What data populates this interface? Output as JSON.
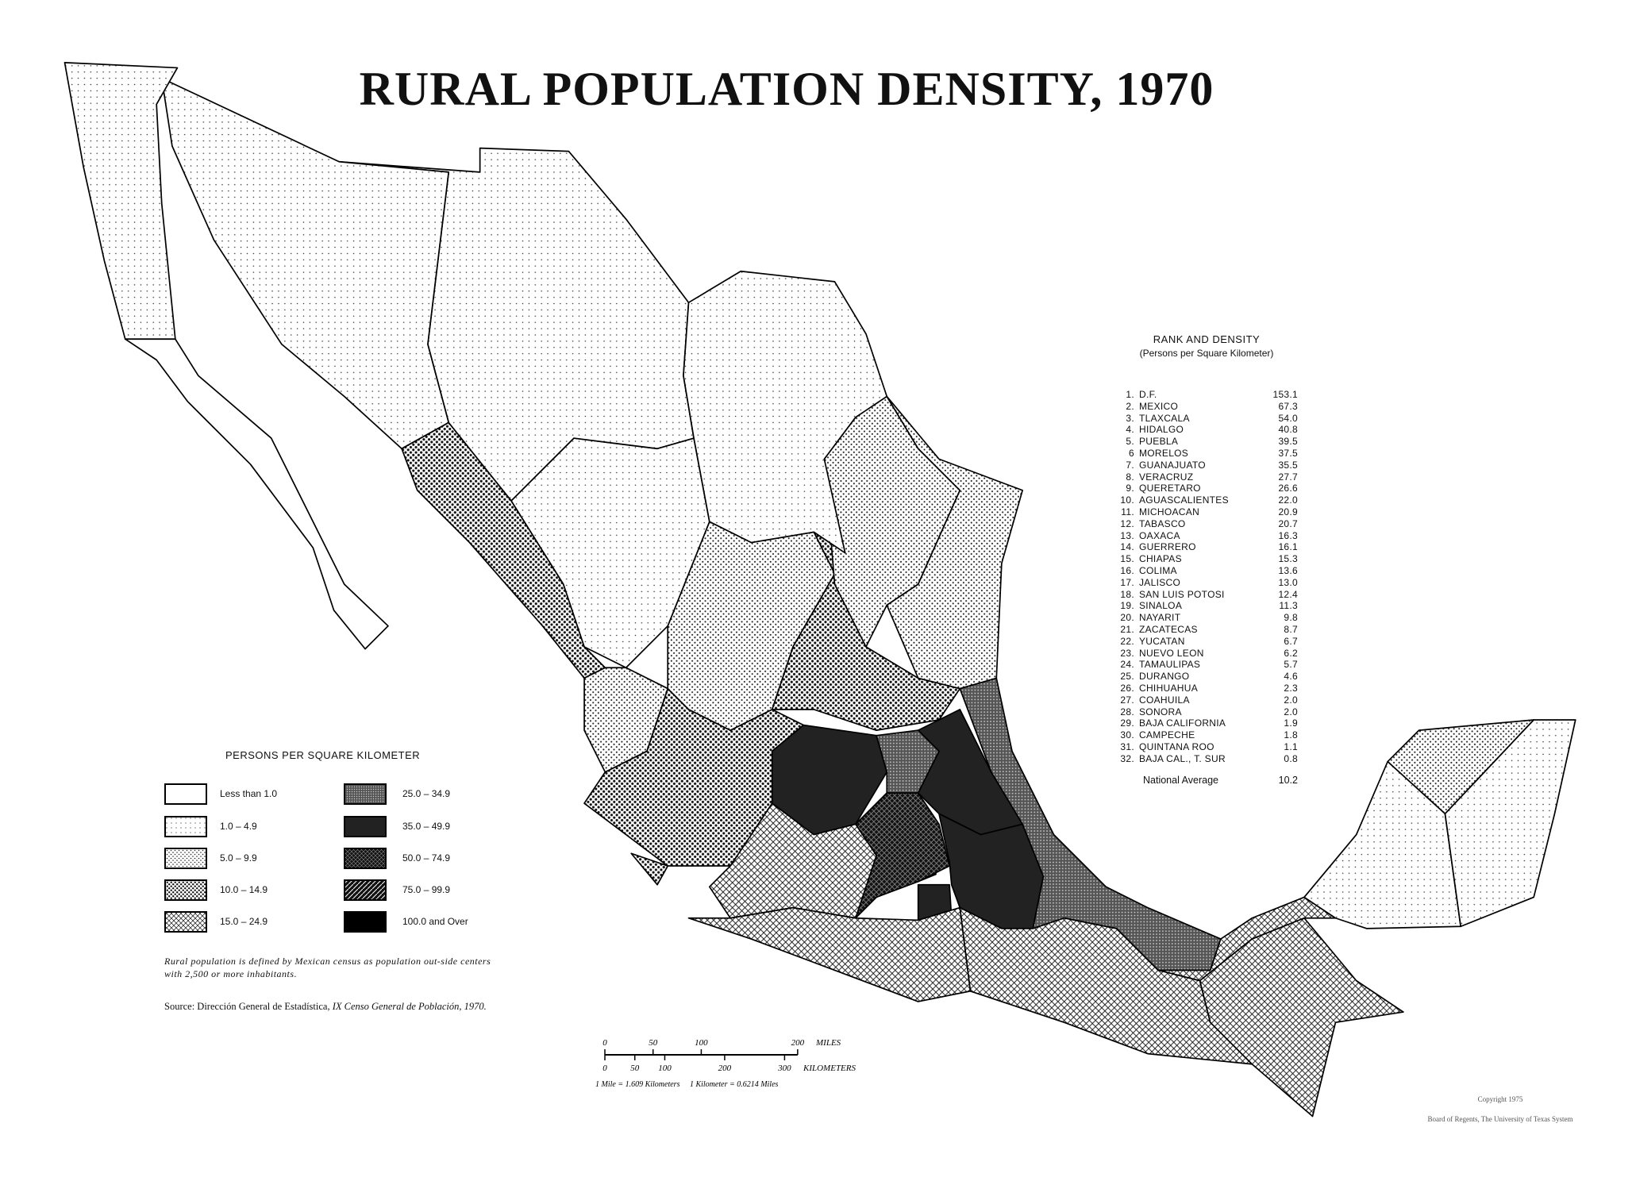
{
  "title": "RURAL  POPULATION DENSITY, 1970",
  "rank": {
    "heading": "RANK AND DENSITY",
    "subheading": "(Persons per Square Kilometer)",
    "rows": [
      {
        "n": "1.",
        "state": "D.F.",
        "v": "153.1"
      },
      {
        "n": "2.",
        "state": "MEXICO",
        "v": "67.3"
      },
      {
        "n": "3.",
        "state": "TLAXCALA",
        "v": "54.0"
      },
      {
        "n": "4.",
        "state": "HIDALGO",
        "v": "40.8"
      },
      {
        "n": "5.",
        "state": "PUEBLA",
        "v": "39.5"
      },
      {
        "n": "6",
        "state": "MORELOS",
        "v": "37.5"
      },
      {
        "n": "7.",
        "state": "GUANAJUATO",
        "v": "35.5"
      },
      {
        "n": "8.",
        "state": "VERACRUZ",
        "v": "27.7"
      },
      {
        "n": "9.",
        "state": "QUERETARO",
        "v": "26.6"
      },
      {
        "n": "10.",
        "state": "AGUASCALIENTES",
        "v": "22.0"
      },
      {
        "n": "11.",
        "state": "MICHOACAN",
        "v": "20.9"
      },
      {
        "n": "12.",
        "state": "TABASCO",
        "v": "20.7"
      },
      {
        "n": "13.",
        "state": "OAXACA",
        "v": "16.3"
      },
      {
        "n": "14.",
        "state": "GUERRERO",
        "v": "16.1"
      },
      {
        "n": "15.",
        "state": "CHIAPAS",
        "v": "15.3"
      },
      {
        "n": "16.",
        "state": "COLIMA",
        "v": "13.6"
      },
      {
        "n": "17.",
        "state": "JALISCO",
        "v": "13.0"
      },
      {
        "n": "18.",
        "state": "SAN LUIS POTOSI",
        "v": "12.4"
      },
      {
        "n": "19.",
        "state": "SINALOA",
        "v": "11.3"
      },
      {
        "n": "20.",
        "state": "NAYARIT",
        "v": "9.8"
      },
      {
        "n": "21.",
        "state": "ZACATECAS",
        "v": "8.7"
      },
      {
        "n": "22.",
        "state": "YUCATAN",
        "v": "6.7"
      },
      {
        "n": "23.",
        "state": "NUEVO LEON",
        "v": "6.2"
      },
      {
        "n": "24.",
        "state": "TAMAULIPAS",
        "v": "5.7"
      },
      {
        "n": "25.",
        "state": "DURANGO",
        "v": "4.6"
      },
      {
        "n": "26.",
        "state": "CHIHUAHUA",
        "v": "2.3"
      },
      {
        "n": "27.",
        "state": "COAHUILA",
        "v": "2.0"
      },
      {
        "n": "28.",
        "state": "SONORA",
        "v": "2.0"
      },
      {
        "n": "29.",
        "state": "BAJA CALIFORNIA",
        "v": "1.9"
      },
      {
        "n": "30.",
        "state": "CAMPECHE",
        "v": "1.8"
      },
      {
        "n": "31.",
        "state": "QUINTANA ROO",
        "v": "1.1"
      },
      {
        "n": "32.",
        "state": "BAJA CAL., T. SUR",
        "v": "0.8"
      }
    ],
    "average_label": "National Average",
    "average_value": "10.2"
  },
  "legend": {
    "title": "PERSONS PER SQUARE KILOMETER",
    "classes": [
      {
        "label": "Less than 1.0",
        "pattern": "none"
      },
      {
        "label": "1.0 – 4.9",
        "pattern": "fine-dots"
      },
      {
        "label": "5.0 – 9.9",
        "pattern": "medium-dots"
      },
      {
        "label": "10.0 – 14.9",
        "pattern": "heavy-dots"
      },
      {
        "label": "15.0 – 24.9",
        "pattern": "crosshatch"
      },
      {
        "label": "25.0 – 34.9",
        "pattern": "dense-dots"
      },
      {
        "label": "35.0 – 49.9",
        "pattern": "near-black"
      },
      {
        "label": "50.0 – 74.9",
        "pattern": "black-crosshatch"
      },
      {
        "label": "75.0 – 99.9",
        "pattern": "diagonal-stripes"
      },
      {
        "label": "100.0 and Over",
        "pattern": "solid-black"
      }
    ]
  },
  "note": "Rural population is defined by Mexican census as population out-side centers with 2,500 or more inhabitants.",
  "source": {
    "prefix": "Source:  Dirección General de Estadística, ",
    "work": "IX Censo General de Población, 1970."
  },
  "scale": {
    "miles_ticks": [
      "0",
      "50",
      "100",
      "200"
    ],
    "miles_label": "MILES",
    "km_ticks": [
      "0",
      "50",
      "100",
      "200",
      "300"
    ],
    "km_label": "KILOMETERS",
    "conversion": "1 Mile = 1.609 Kilometers     1 Kilometer = 0.6214 Miles"
  },
  "copyright": {
    "line1": "Copyright 1975",
    "line2": "Board of Regents, The University of Texas System"
  }
}
